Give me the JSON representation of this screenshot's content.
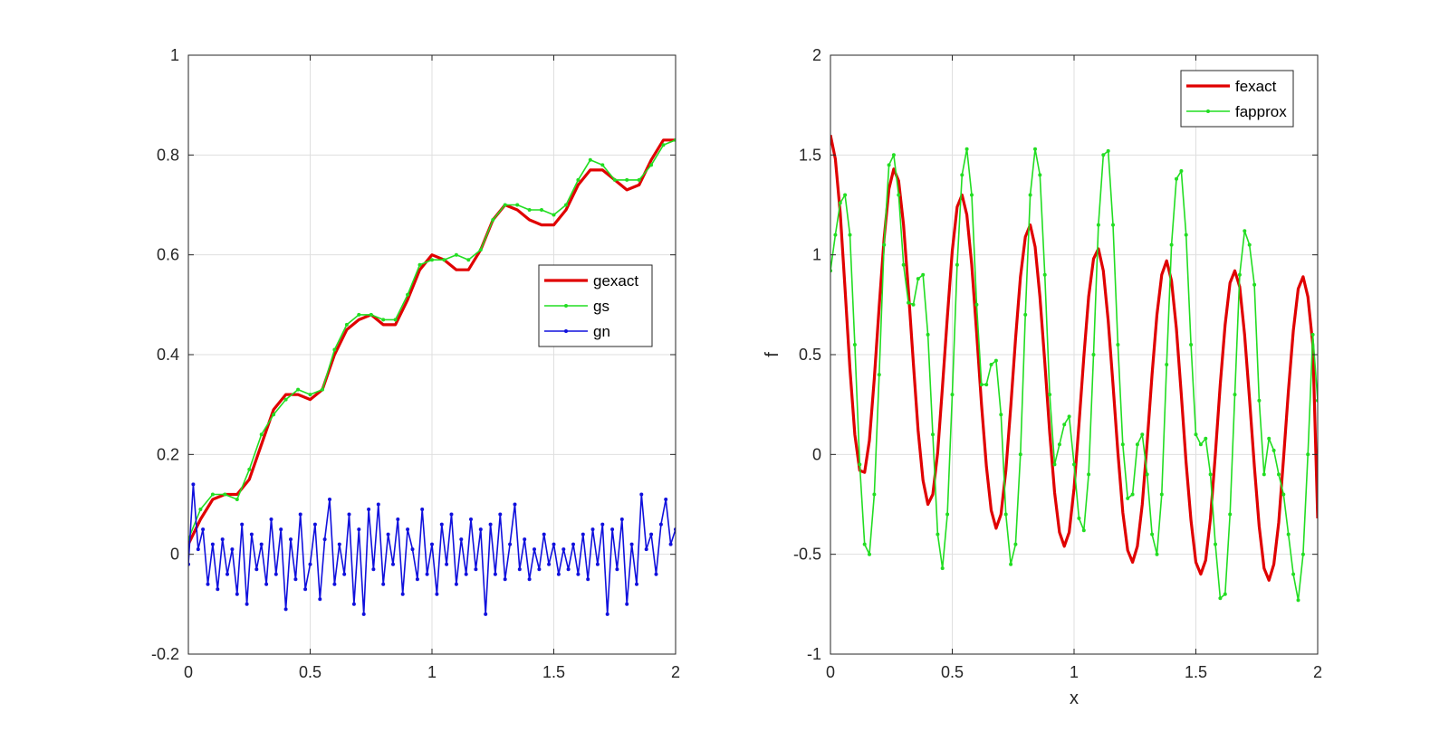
{
  "chart_data": [
    {
      "type": "line",
      "title": "",
      "xlabel": "",
      "ylabel": "",
      "xlim": [
        0,
        2
      ],
      "ylim": [
        -0.2,
        1
      ],
      "xticks": [
        0,
        0.5,
        1,
        1.5,
        2
      ],
      "xtick_labels": [
        "0",
        "0.5",
        "1",
        "1.5",
        "2"
      ],
      "yticks": [
        -0.2,
        0,
        0.2,
        0.4,
        0.6,
        0.8,
        1
      ],
      "ytick_labels": [
        "-0.2",
        "0",
        "0.2",
        "0.4",
        "0.6",
        "0.8",
        "1"
      ],
      "grid": true,
      "legend": "right",
      "series": [
        {
          "name": "gexact",
          "color": "#e00000",
          "marker": "none",
          "x": [
            0,
            0.05,
            0.1,
            0.15,
            0.2,
            0.25,
            0.3,
            0.35,
            0.4,
            0.45,
            0.5,
            0.55,
            0.6,
            0.65,
            0.7,
            0.75,
            0.8,
            0.85,
            0.9,
            0.95,
            1,
            1.05,
            1.1,
            1.15,
            1.2,
            1.25,
            1.3,
            1.35,
            1.4,
            1.45,
            1.5,
            1.55,
            1.6,
            1.65,
            1.7,
            1.75,
            1.8,
            1.85,
            1.9,
            1.95,
            2
          ],
          "y": [
            0.02,
            0.07,
            0.11,
            0.12,
            0.12,
            0.15,
            0.22,
            0.29,
            0.32,
            0.32,
            0.31,
            0.33,
            0.4,
            0.45,
            0.47,
            0.48,
            0.46,
            0.46,
            0.51,
            0.57,
            0.6,
            0.59,
            0.57,
            0.57,
            0.61,
            0.67,
            0.7,
            0.69,
            0.67,
            0.66,
            0.66,
            0.69,
            0.74,
            0.77,
            0.77,
            0.75,
            0.73,
            0.74,
            0.79,
            0.83,
            0.83
          ]
        },
        {
          "name": "gs",
          "color": "#22dd22",
          "marker": "point",
          "x": [
            0,
            0.05,
            0.1,
            0.15,
            0.2,
            0.25,
            0.3,
            0.35,
            0.4,
            0.45,
            0.5,
            0.55,
            0.6,
            0.65,
            0.7,
            0.75,
            0.8,
            0.85,
            0.9,
            0.95,
            1,
            1.05,
            1.1,
            1.15,
            1.2,
            1.25,
            1.3,
            1.35,
            1.4,
            1.45,
            1.5,
            1.55,
            1.6,
            1.65,
            1.7,
            1.75,
            1.8,
            1.85,
            1.9,
            1.95,
            2
          ],
          "y": [
            0.03,
            0.09,
            0.12,
            0.12,
            0.11,
            0.17,
            0.24,
            0.28,
            0.31,
            0.33,
            0.32,
            0.33,
            0.41,
            0.46,
            0.48,
            0.48,
            0.47,
            0.47,
            0.52,
            0.58,
            0.59,
            0.59,
            0.6,
            0.59,
            0.61,
            0.67,
            0.7,
            0.7,
            0.69,
            0.69,
            0.68,
            0.7,
            0.75,
            0.79,
            0.78,
            0.75,
            0.75,
            0.75,
            0.78,
            0.82,
            0.83
          ]
        },
        {
          "name": "gn",
          "color": "#1010dd",
          "marker": "point",
          "x": [
            0,
            0.02,
            0.04,
            0.06,
            0.08,
            0.1,
            0.12,
            0.14,
            0.16,
            0.18,
            0.2,
            0.22,
            0.24,
            0.26,
            0.28,
            0.3,
            0.32,
            0.34,
            0.36,
            0.38,
            0.4,
            0.42,
            0.44,
            0.46,
            0.48,
            0.5,
            0.52,
            0.54,
            0.56,
            0.58,
            0.6,
            0.62,
            0.64,
            0.66,
            0.68,
            0.7,
            0.72,
            0.74,
            0.76,
            0.78,
            0.8,
            0.82,
            0.84,
            0.86,
            0.88,
            0.9,
            0.92,
            0.94,
            0.96,
            0.98,
            1,
            1.02,
            1.04,
            1.06,
            1.08,
            1.1,
            1.12,
            1.14,
            1.16,
            1.18,
            1.2,
            1.22,
            1.24,
            1.26,
            1.28,
            1.3,
            1.32,
            1.34,
            1.36,
            1.38,
            1.4,
            1.42,
            1.44,
            1.46,
            1.48,
            1.5,
            1.52,
            1.54,
            1.56,
            1.58,
            1.6,
            1.62,
            1.64,
            1.66,
            1.68,
            1.7,
            1.72,
            1.74,
            1.76,
            1.78,
            1.8,
            1.82,
            1.84,
            1.86,
            1.88,
            1.9,
            1.92,
            1.94,
            1.96,
            1.98,
            2
          ],
          "y": [
            -0.02,
            0.14,
            0.01,
            0.05,
            -0.06,
            0.02,
            -0.07,
            0.03,
            -0.04,
            0.01,
            -0.08,
            0.06,
            -0.1,
            0.04,
            -0.03,
            0.02,
            -0.06,
            0.07,
            -0.04,
            0.05,
            -0.11,
            0.03,
            -0.05,
            0.08,
            -0.07,
            -0.02,
            0.06,
            -0.09,
            0.03,
            0.11,
            -0.06,
            0.02,
            -0.04,
            0.08,
            -0.1,
            0.05,
            -0.12,
            0.09,
            -0.03,
            0.1,
            -0.06,
            0.04,
            -0.02,
            0.07,
            -0.08,
            0.05,
            0.01,
            -0.05,
            0.09,
            -0.04,
            0.02,
            -0.08,
            0.06,
            -0.02,
            0.08,
            -0.06,
            0.03,
            -0.04,
            0.07,
            -0.03,
            0.05,
            -0.12,
            0.06,
            -0.04,
            0.08,
            -0.05,
            0.02,
            0.1,
            -0.03,
            0.03,
            -0.05,
            0.01,
            -0.03,
            0.04,
            -0.02,
            0.02,
            -0.04,
            0.01,
            -0.03,
            0.02,
            -0.04,
            0.04,
            -0.05,
            0.05,
            -0.02,
            0.06,
            -0.12,
            0.05,
            -0.03,
            0.07,
            -0.1,
            0.02,
            -0.06,
            0.12,
            0.01,
            0.04,
            -0.04,
            0.06,
            0.11,
            0.02,
            0.05
          ]
        }
      ]
    },
    {
      "type": "line",
      "title": "",
      "xlabel": "x",
      "ylabel": "f",
      "xlim": [
        0,
        2
      ],
      "ylim": [
        -1,
        2
      ],
      "xticks": [
        0,
        0.5,
        1,
        1.5,
        2
      ],
      "xtick_labels": [
        "0",
        "0.5",
        "1",
        "1.5",
        "2"
      ],
      "yticks": [
        -1,
        -0.5,
        0,
        0.5,
        1,
        1.5,
        2
      ],
      "ytick_labels": [
        "-1",
        "-0.5",
        "0",
        "0.5",
        "1",
        "1.5",
        "2"
      ],
      "grid": true,
      "legend": "top-right",
      "series": [
        {
          "name": "fexact",
          "color": "#e00000",
          "marker": "none",
          "x": [
            0,
            0.02,
            0.04,
            0.06,
            0.08,
            0.1,
            0.12,
            0.14,
            0.16,
            0.18,
            0.2,
            0.22,
            0.24,
            0.26,
            0.28,
            0.3,
            0.32,
            0.34,
            0.36,
            0.38,
            0.4,
            0.42,
            0.44,
            0.46,
            0.48,
            0.5,
            0.52,
            0.54,
            0.56,
            0.58,
            0.6,
            0.62,
            0.64,
            0.66,
            0.68,
            0.7,
            0.72,
            0.74,
            0.76,
            0.78,
            0.8,
            0.82,
            0.84,
            0.86,
            0.88,
            0.9,
            0.92,
            0.94,
            0.96,
            0.98,
            1,
            1.02,
            1.04,
            1.06,
            1.08,
            1.1,
            1.12,
            1.14,
            1.16,
            1.18,
            1.2,
            1.22,
            1.24,
            1.26,
            1.28,
            1.3,
            1.32,
            1.34,
            1.36,
            1.38,
            1.4,
            1.42,
            1.44,
            1.46,
            1.48,
            1.5,
            1.52,
            1.54,
            1.56,
            1.58,
            1.6,
            1.62,
            1.64,
            1.66,
            1.68,
            1.7,
            1.72,
            1.74,
            1.76,
            1.78,
            1.8,
            1.82,
            1.84,
            1.86,
            1.88,
            1.9,
            1.92,
            1.94,
            1.96,
            1.98,
            2
          ],
          "y": [
            1.6,
            1.48,
            1.21,
            0.83,
            0.43,
            0.1,
            -0.08,
            -0.09,
            0.07,
            0.38,
            0.74,
            1.08,
            1.33,
            1.43,
            1.37,
            1.15,
            0.82,
            0.46,
            0.12,
            -0.13,
            -0.25,
            -0.2,
            0.01,
            0.34,
            0.69,
            1.02,
            1.24,
            1.3,
            1.2,
            0.95,
            0.61,
            0.25,
            -0.06,
            -0.28,
            -0.37,
            -0.3,
            -0.08,
            0.24,
            0.58,
            0.89,
            1.09,
            1.15,
            1.04,
            0.79,
            0.46,
            0.11,
            -0.19,
            -0.39,
            -0.46,
            -0.39,
            -0.17,
            0.15,
            0.49,
            0.79,
            0.98,
            1.03,
            0.92,
            0.67,
            0.35,
            0.01,
            -0.29,
            -0.48,
            -0.54,
            -0.46,
            -0.25,
            0.06,
            0.4,
            0.7,
            0.9,
            0.97,
            0.87,
            0.63,
            0.3,
            -0.04,
            -0.33,
            -0.54,
            -0.6,
            -0.53,
            -0.32,
            0.0,
            0.35,
            0.65,
            0.86,
            0.92,
            0.84,
            0.6,
            0.28,
            -0.06,
            -0.36,
            -0.57,
            -0.63,
            -0.55,
            -0.34,
            -0.02,
            0.32,
            0.62,
            0.83,
            0.89,
            0.79,
            0.55,
            -0.32
          ]
        },
        {
          "name": "fapprox",
          "color": "#22dd22",
          "marker": "point",
          "x": [
            0,
            0.02,
            0.04,
            0.06,
            0.08,
            0.1,
            0.12,
            0.14,
            0.16,
            0.18,
            0.2,
            0.22,
            0.24,
            0.26,
            0.28,
            0.3,
            0.32,
            0.34,
            0.36,
            0.38,
            0.4,
            0.42,
            0.44,
            0.46,
            0.48,
            0.5,
            0.52,
            0.54,
            0.56,
            0.58,
            0.6,
            0.62,
            0.64,
            0.66,
            0.68,
            0.7,
            0.72,
            0.74,
            0.76,
            0.78,
            0.8,
            0.82,
            0.84,
            0.86,
            0.88,
            0.9,
            0.92,
            0.94,
            0.96,
            0.98,
            1,
            1.02,
            1.04,
            1.06,
            1.08,
            1.1,
            1.12,
            1.14,
            1.16,
            1.18,
            1.2,
            1.22,
            1.24,
            1.26,
            1.28,
            1.3,
            1.32,
            1.34,
            1.36,
            1.38,
            1.4,
            1.42,
            1.44,
            1.46,
            1.48,
            1.5,
            1.52,
            1.54,
            1.56,
            1.58,
            1.6,
            1.62,
            1.64,
            1.66,
            1.68,
            1.7,
            1.72,
            1.74,
            1.76,
            1.78,
            1.8,
            1.82,
            1.84,
            1.86,
            1.88,
            1.9,
            1.92,
            1.94,
            1.96,
            1.98,
            2
          ],
          "y": [
            0.92,
            1.1,
            1.26,
            1.3,
            1.1,
            0.55,
            -0.05,
            -0.45,
            -0.5,
            -0.2,
            0.4,
            1.05,
            1.45,
            1.5,
            1.3,
            0.95,
            0.76,
            0.75,
            0.88,
            0.9,
            0.6,
            0.1,
            -0.4,
            -0.57,
            -0.3,
            0.3,
            0.95,
            1.4,
            1.53,
            1.3,
            0.75,
            0.35,
            0.35,
            0.45,
            0.47,
            0.2,
            -0.3,
            -0.55,
            -0.45,
            0.0,
            0.7,
            1.3,
            1.53,
            1.4,
            0.9,
            0.3,
            -0.05,
            0.05,
            0.15,
            0.19,
            -0.05,
            -0.32,
            -0.38,
            -0.1,
            0.5,
            1.15,
            1.5,
            1.52,
            1.15,
            0.55,
            0.05,
            -0.22,
            -0.2,
            0.05,
            0.1,
            -0.1,
            -0.4,
            -0.5,
            -0.2,
            0.45,
            1.05,
            1.38,
            1.42,
            1.1,
            0.55,
            0.1,
            0.05,
            0.08,
            -0.1,
            -0.45,
            -0.72,
            -0.7,
            -0.3,
            0.3,
            0.9,
            1.12,
            1.05,
            0.85,
            0.27,
            -0.1,
            0.08,
            0.02,
            -0.1,
            -0.2,
            -0.4,
            -0.6,
            -0.73,
            -0.5,
            0.0,
            0.6,
            0.27
          ]
        }
      ]
    }
  ]
}
